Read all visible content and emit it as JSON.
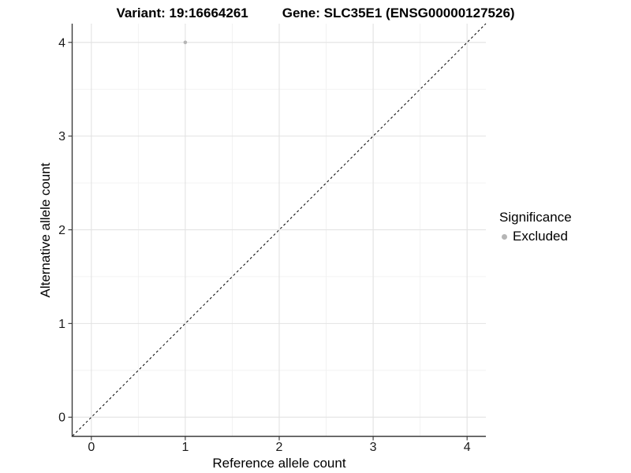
{
  "chart_data": {
    "type": "scatter",
    "title_left": "Variant: 19:16664261",
    "title_right": "Gene: SLC35E1 (ENSG00000127526)",
    "xlabel": "Reference allele count",
    "ylabel": "Alternative allele count",
    "xlim": [
      -0.2,
      4.2
    ],
    "ylim": [
      -0.2,
      4.2
    ],
    "x_ticks": [
      0,
      1,
      2,
      3,
      4
    ],
    "y_ticks": [
      0,
      1,
      2,
      3,
      4
    ],
    "x_minor_ticks": [
      0.5,
      1.5,
      2.5,
      3.5
    ],
    "y_minor_ticks": [
      0.5,
      1.5,
      2.5,
      3.5
    ],
    "grid": true,
    "legend_position": "right",
    "identity_line": {
      "slope": 1,
      "intercept": 0,
      "style": "dashed",
      "color": "#000000"
    },
    "series": [
      {
        "name": "Excluded",
        "color": "#b5b5b5",
        "points": [
          {
            "x": 1,
            "y": 4
          }
        ]
      }
    ],
    "legend": {
      "title": "Significance",
      "entries": [
        {
          "label": "Excluded",
          "color": "#b5b5b5"
        }
      ]
    },
    "colors": {
      "background": "#ffffff",
      "grid_major": "#e2e2e2",
      "grid_minor": "#f1f1f1",
      "axis": "#3c3c3c",
      "tick": "#333333",
      "text": "#000000"
    }
  }
}
